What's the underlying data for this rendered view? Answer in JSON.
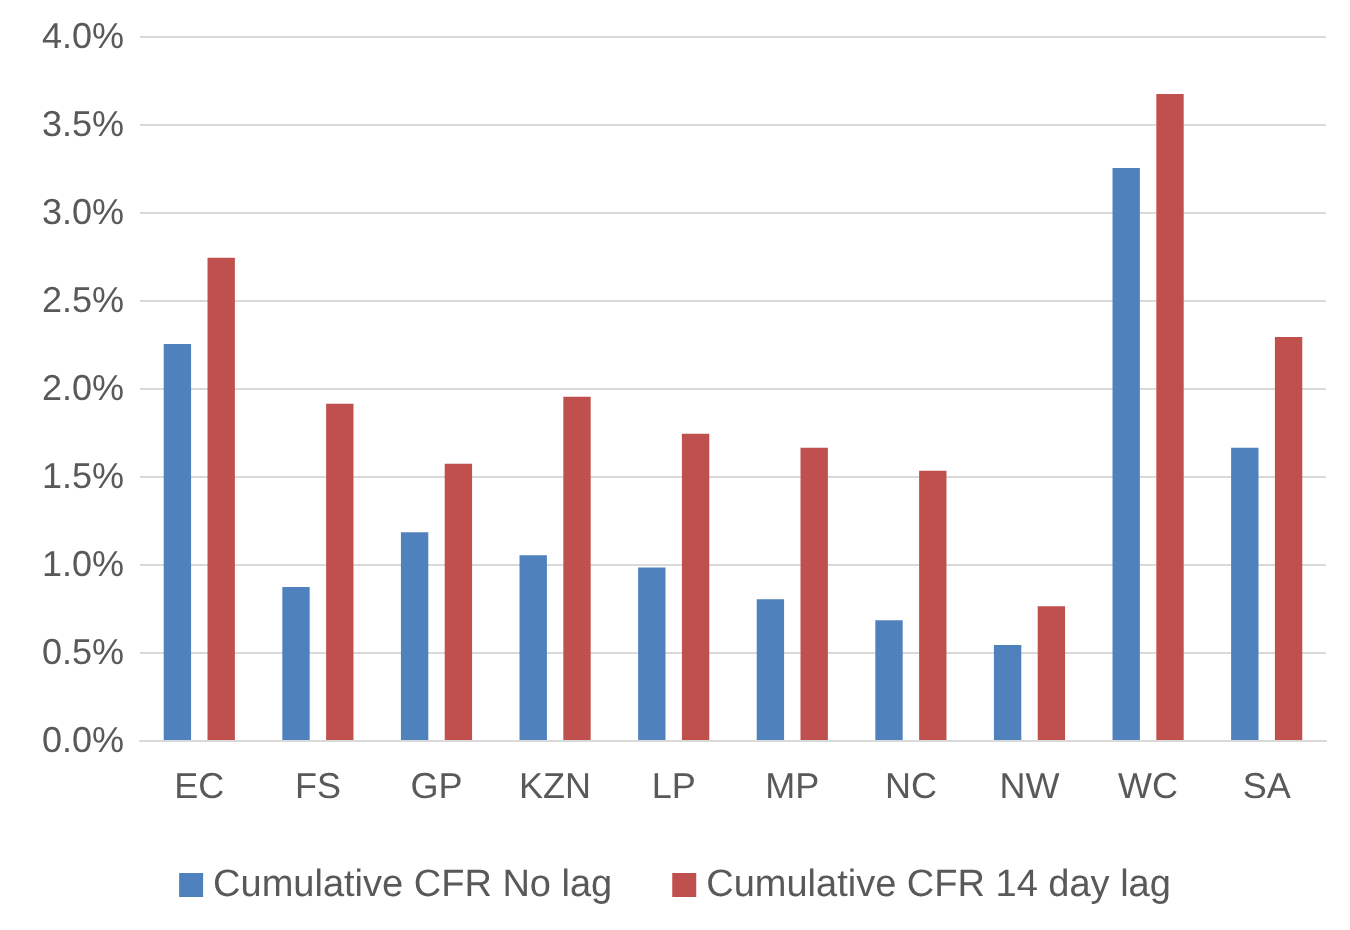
{
  "chart_data": {
    "type": "bar",
    "categories": [
      "EC",
      "FS",
      "GP",
      "KZN",
      "LP",
      "MP",
      "NC",
      "NW",
      "WC",
      "SA"
    ],
    "series": [
      {
        "name": "Cumulative CFR No lag",
        "color": "#4f81bd",
        "values": [
          2.25,
          0.87,
          1.18,
          1.05,
          0.98,
          0.8,
          0.68,
          0.54,
          3.25,
          1.66
        ]
      },
      {
        "name": "Cumulative CFR 14 day lag",
        "color": "#c0504d",
        "values": [
          2.74,
          1.91,
          1.57,
          1.95,
          1.74,
          1.66,
          1.53,
          0.76,
          3.67,
          2.29
        ]
      }
    ],
    "ylim": [
      0,
      4
    ],
    "yticks": [
      {
        "value": 0,
        "label": "0.0%"
      },
      {
        "value": 0.5,
        "label": "0.5%"
      },
      {
        "value": 1,
        "label": "1.0%"
      },
      {
        "value": 1.5,
        "label": "1.5%"
      },
      {
        "value": 2,
        "label": "2.0%"
      },
      {
        "value": 2.5,
        "label": "2.5%"
      },
      {
        "value": 3,
        "label": "3.0%"
      },
      {
        "value": 3.5,
        "label": "3.5%"
      },
      {
        "value": 4,
        "label": "4.0%"
      }
    ],
    "grid": "y",
    "legend": "bottom"
  }
}
